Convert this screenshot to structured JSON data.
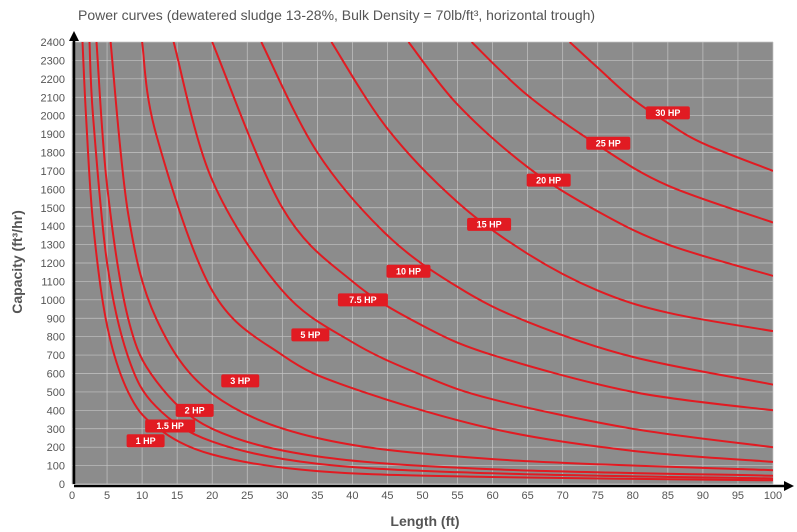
{
  "chart_data": {
    "type": "line",
    "title": "Power curves (dewatered sludge 13-28%, Bulk Density = 70lb/ft³, horizontal trough)",
    "xlabel": "Length (ft)",
    "ylabel": "Capacity (ft³/hr)",
    "xlim": [
      0,
      100
    ],
    "ylim": [
      0,
      2400
    ],
    "x_ticks": [
      0,
      5,
      10,
      15,
      20,
      25,
      30,
      35,
      40,
      45,
      50,
      55,
      60,
      65,
      70,
      75,
      80,
      85,
      90,
      95,
      100
    ],
    "y_ticks": [
      0,
      100,
      200,
      300,
      400,
      500,
      600,
      700,
      800,
      900,
      1000,
      1100,
      1200,
      1300,
      1400,
      1500,
      1600,
      1700,
      1800,
      1900,
      2000,
      2100,
      2200,
      2300,
      2400
    ],
    "grid": true,
    "plot_background": "#8c8c8c",
    "curve_color": "#e11b22",
    "series": [
      {
        "name": "1 HP",
        "x": [
          1.5,
          2,
          3,
          5,
          8,
          12,
          20,
          35,
          60,
          100
        ],
        "y": [
          2400,
          2000,
          1420,
          860,
          500,
          310,
          160,
          70,
          38,
          20
        ]
      },
      {
        "name": "1.5 HP",
        "x": [
          2.5,
          3,
          5,
          8,
          12,
          20,
          35,
          60,
          100
        ],
        "y": [
          2400,
          2000,
          1200,
          690,
          420,
          230,
          110,
          58,
          30
        ]
      },
      {
        "name": "2 HP",
        "x": [
          3.5,
          5,
          8,
          12,
          20,
          35,
          60,
          100
        ],
        "y": [
          2400,
          1620,
          900,
          560,
          300,
          150,
          80,
          45
        ]
      },
      {
        "name": "3 HP",
        "x": [
          5.5,
          8,
          12,
          20,
          35,
          60,
          100
        ],
        "y": [
          2400,
          1470,
          900,
          490,
          250,
          135,
          75
        ]
      },
      {
        "name": "5 HP",
        "x": [
          10,
          12,
          20,
          30,
          40,
          60,
          80,
          100
        ],
        "y": [
          2400,
          1900,
          1050,
          700,
          520,
          300,
          180,
          120
        ]
      },
      {
        "name": "7.5 HP",
        "x": [
          14.5,
          20,
          30,
          40,
          50,
          60,
          80,
          100
        ],
        "y": [
          2400,
          1650,
          1050,
          770,
          590,
          460,
          300,
          200
        ]
      },
      {
        "name": "10 HP",
        "x": [
          20,
          30,
          40,
          50,
          60,
          80,
          100
        ],
        "y": [
          2400,
          1500,
          1100,
          860,
          700,
          500,
          400
        ]
      },
      {
        "name": "15 HP",
        "x": [
          27,
          35,
          45,
          55,
          65,
          80,
          100
        ],
        "y": [
          2400,
          1800,
          1350,
          1070,
          880,
          690,
          540
        ]
      },
      {
        "name": "20 HP",
        "x": [
          37,
          45,
          55,
          65,
          75,
          85,
          100
        ],
        "y": [
          2400,
          1930,
          1530,
          1250,
          1050,
          930,
          830
        ]
      },
      {
        "name": "25 HP",
        "x": [
          48,
          55,
          65,
          75,
          85,
          100
        ],
        "y": [
          2400,
          2060,
          1720,
          1480,
          1300,
          1130
        ]
      },
      {
        "name": "30 HP",
        "x": [
          57,
          65,
          75,
          85,
          100
        ],
        "y": [
          2400,
          2110,
          1840,
          1620,
          1420
        ]
      },
      {
        "name": "",
        "x": [
          71,
          75,
          80,
          85,
          90,
          100
        ],
        "y": [
          2400,
          2260,
          2090,
          1960,
          1850,
          1700
        ]
      }
    ],
    "annotations": [
      {
        "text": "1 HP",
        "x": 10.5,
        "y": 235
      },
      {
        "text": "1.5 HP",
        "x": 14,
        "y": 315
      },
      {
        "text": "2 HP",
        "x": 17.5,
        "y": 400
      },
      {
        "text": "3 HP",
        "x": 24,
        "y": 560
      },
      {
        "text": "5 HP",
        "x": 34,
        "y": 810
      },
      {
        "text": "7.5 HP",
        "x": 41.5,
        "y": 1000
      },
      {
        "text": "10 HP",
        "x": 48,
        "y": 1155
      },
      {
        "text": "15 HP",
        "x": 59.5,
        "y": 1410
      },
      {
        "text": "20 HP",
        "x": 68,
        "y": 1650
      },
      {
        "text": "25 HP",
        "x": 76.5,
        "y": 1850
      },
      {
        "text": "30 HP",
        "x": 85,
        "y": 2015
      }
    ]
  }
}
